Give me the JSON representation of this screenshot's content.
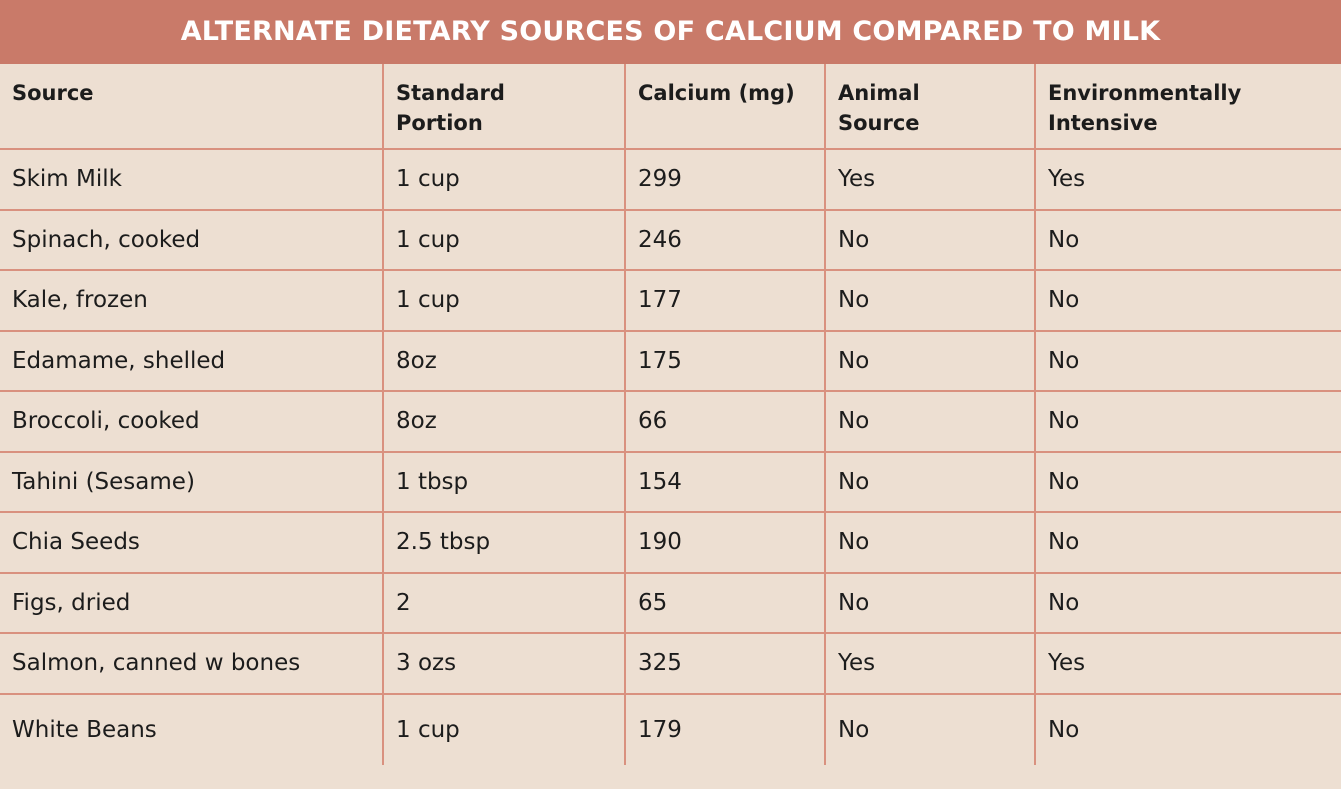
{
  "title": "ALTERNATE DIETARY SOURCES OF CALCIUM COMPARED TO MILK",
  "table": {
    "header": [
      "Source",
      "Standard Portion",
      "Calcium (mg)",
      "Animal Source",
      "Environmentally Intensive"
    ],
    "rows": [
      [
        "Skim Milk",
        "1 cup",
        299,
        "Yes",
        "Yes"
      ],
      [
        "Spinach, cooked",
        "1 cup",
        246,
        "No",
        "No"
      ],
      [
        "Kale, frozen",
        "1 cup",
        177,
        "No",
        "No"
      ],
      [
        "Edamame, shelled",
        "8oz",
        175,
        "No",
        "No"
      ],
      [
        "Broccoli, cooked",
        "8oz",
        66,
        "No",
        "No"
      ],
      [
        "Tahini (Sesame)",
        "1 tbsp",
        154,
        "No",
        "No"
      ],
      [
        "Chia Seeds",
        "2.5 tbsp",
        190,
        "No",
        "No"
      ],
      [
        "Figs, dried",
        "2",
        65,
        "No",
        "No"
      ],
      [
        "Salmon, canned w bones",
        "3 ozs",
        325,
        "Yes",
        "Yes"
      ],
      [
        "White Beans",
        "1 cup",
        179,
        "No",
        "No"
      ]
    ]
  }
}
